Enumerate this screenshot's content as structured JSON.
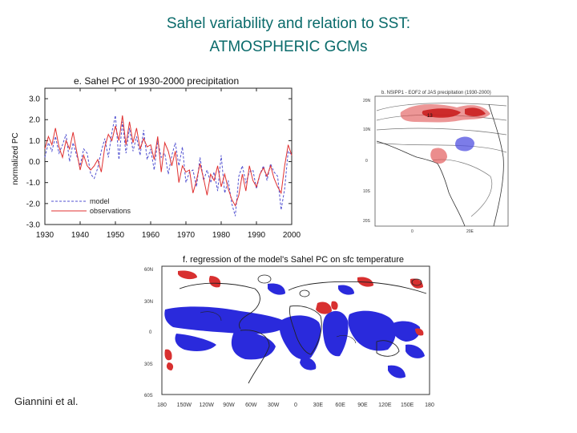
{
  "slide": {
    "title_line1": "Sahel variability and relation to SST:",
    "title_line2": "ATMOSPHERIC GCMs",
    "credit": "Giannini et al."
  },
  "panel_e": {
    "title": "e. Sahel PC of 1930-2000 precipitation",
    "ylabel": "normalized PC",
    "legend_model": "model",
    "legend_obs": "observations"
  },
  "panel_b": {
    "title": "b. NSIPP1 - EOF2 of JAS precipitation (1930-2000)",
    "lat_labels": [
      "20N",
      "10N",
      "0",
      "10S",
      "20S"
    ],
    "lon_labels": [
      "0",
      "20E"
    ],
    "box_label": "13"
  },
  "panel_f": {
    "title": "f. regression of the model's Sahel PC on sfc temperature",
    "lat_labels": [
      "60N",
      "30N",
      "0",
      "30S",
      "60S"
    ],
    "lon_labels": [
      "180",
      "150W",
      "120W",
      "90W",
      "60W",
      "30W",
      "0",
      "30E",
      "60E",
      "90E",
      "120E",
      "150E",
      "180"
    ]
  },
  "colors": {
    "title": "#0a6b6b",
    "model": "#5050d0",
    "observations": "#e03030",
    "positive": "#d83030",
    "negative": "#2a2adc"
  },
  "chart_data": {
    "type": "line",
    "title": "e. Sahel PC of 1930-2000 precipitation",
    "xlabel": "",
    "ylabel": "normalized PC",
    "xlim": [
      1930,
      2000
    ],
    "ylim": [
      -3.0,
      3.5
    ],
    "x_ticks": [
      1930,
      1940,
      1950,
      1960,
      1970,
      1980,
      1990,
      2000
    ],
    "y_ticks": [
      3.0,
      2.0,
      1.0,
      0.0,
      -1.0,
      -2.0,
      -3.0
    ],
    "y_tick_labels": [
      "3.0",
      "2.0",
      "1.0",
      "0.0",
      "-1.0",
      "-2.0",
      "-3.0"
    ],
    "x": [
      1930,
      1931,
      1932,
      1933,
      1934,
      1935,
      1936,
      1937,
      1938,
      1939,
      1940,
      1941,
      1942,
      1943,
      1944,
      1945,
      1946,
      1947,
      1948,
      1949,
      1950,
      1951,
      1952,
      1953,
      1954,
      1955,
      1956,
      1957,
      1958,
      1959,
      1960,
      1961,
      1962,
      1963,
      1964,
      1965,
      1966,
      1967,
      1968,
      1969,
      1970,
      1971,
      1972,
      1973,
      1974,
      1975,
      1976,
      1977,
      1978,
      1979,
      1980,
      1981,
      1982,
      1983,
      1984,
      1985,
      1986,
      1987,
      1988,
      1989,
      1990,
      1991,
      1992,
      1993,
      1994,
      1995,
      1996,
      1997,
      1998,
      1999,
      2000
    ],
    "series": [
      {
        "name": "model",
        "style": "dashed",
        "values": [
          0.2,
          0.9,
          0.5,
          1.2,
          0.4,
          0.8,
          1.3,
          0.0,
          0.9,
          0.3,
          -0.2,
          0.6,
          0.4,
          -0.6,
          -0.8,
          -0.3,
          0.5,
          1.1,
          0.2,
          1.4,
          2.2,
          0.1,
          1.9,
          0.4,
          1.6,
          0.5,
          1.2,
          0.3,
          1.5,
          0.1,
          0.6,
          -0.4,
          1.0,
          0.2,
          0.4,
          -0.6,
          0.3,
          0.9,
          -0.2,
          0.7,
          -1.0,
          -0.5,
          -0.4,
          -1.2,
          0.2,
          -0.9,
          -0.4,
          -1.0,
          -0.5,
          -1.4,
          0.3,
          -1.5,
          -0.9,
          -2.0,
          -2.6,
          -0.7,
          -0.2,
          -1.0,
          -0.5,
          -0.4,
          -1.3,
          -0.6,
          -0.2,
          -0.9,
          -0.1,
          -0.5,
          -0.7,
          -2.3,
          -1.3,
          0.5,
          0.3
        ]
      },
      {
        "name": "observations",
        "style": "solid",
        "values": [
          0.6,
          1.2,
          0.8,
          1.6,
          0.7,
          0.2,
          1.0,
          0.6,
          1.4,
          0.5,
          -0.4,
          0.3,
          -0.2,
          -0.4,
          -0.2,
          0.1,
          -0.5,
          0.7,
          1.3,
          1.0,
          1.7,
          1.0,
          2.2,
          0.8,
          1.9,
          0.9,
          1.6,
          0.6,
          1.1,
          0.7,
          0.8,
          0.1,
          1.2,
          -0.5,
          0.9,
          0.5,
          -0.2,
          0.5,
          -1.0,
          -0.2,
          -0.5,
          -0.4,
          -1.5,
          -0.9,
          -0.1,
          -0.8,
          -1.6,
          -0.6,
          -0.9,
          -0.2,
          -1.2,
          -0.6,
          -1.3,
          -1.8,
          -2.1,
          -1.6,
          -0.6,
          -1.4,
          -0.2,
          -0.9,
          -1.2,
          -0.6,
          -0.3,
          -0.7,
          -0.2,
          -0.8,
          -1.2,
          -1.5,
          -0.2,
          0.8,
          0.3
        ]
      }
    ]
  }
}
